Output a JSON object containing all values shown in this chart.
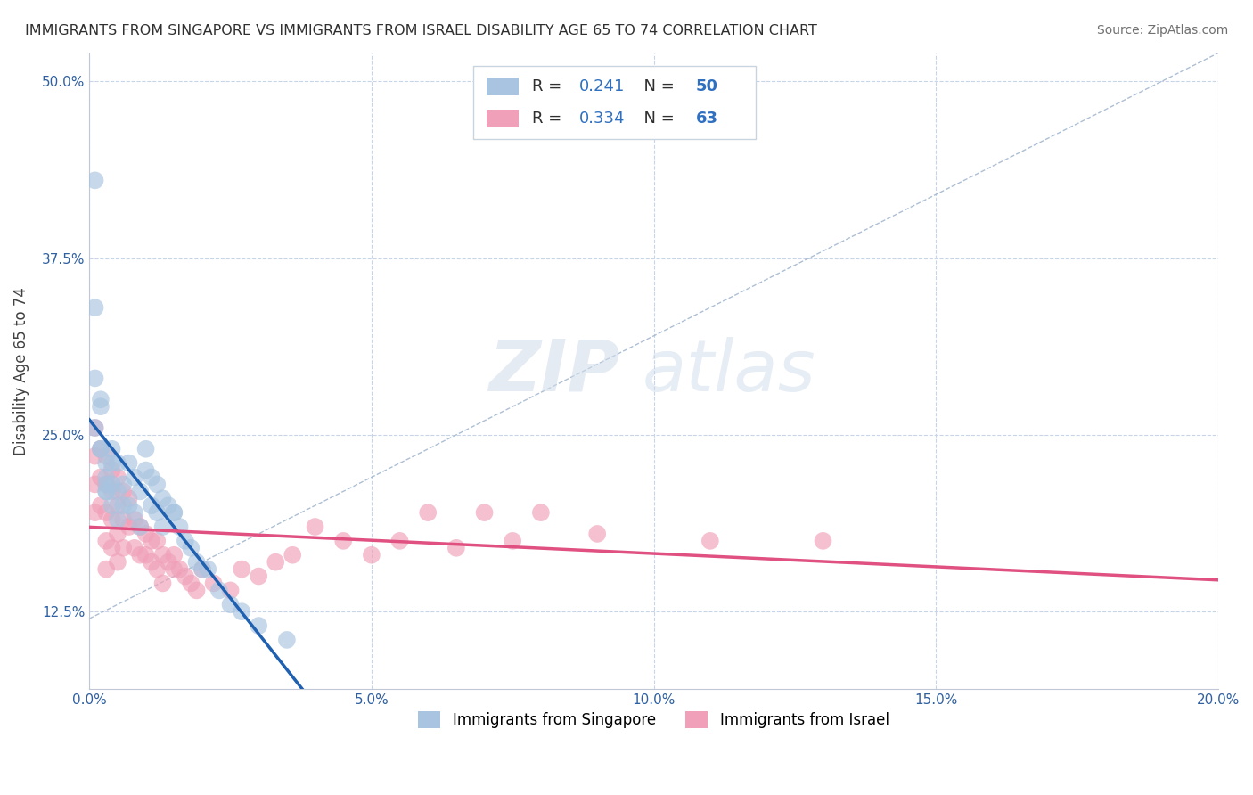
{
  "title": "IMMIGRANTS FROM SINGAPORE VS IMMIGRANTS FROM ISRAEL DISABILITY AGE 65 TO 74 CORRELATION CHART",
  "source": "Source: ZipAtlas.com",
  "ylabel": "Disability Age 65 to 74",
  "xlim": [
    0.0,
    0.2
  ],
  "ylim": [
    0.07,
    0.52
  ],
  "xticks": [
    0.0,
    0.05,
    0.1,
    0.15,
    0.2
  ],
  "xticklabels": [
    "0.0%",
    "5.0%",
    "10.0%",
    "15.0%",
    "20.0%"
  ],
  "yticks": [
    0.125,
    0.25,
    0.375,
    0.5
  ],
  "yticklabels": [
    "12.5%",
    "25.0%",
    "37.5%",
    "50.0%"
  ],
  "singapore_R": 0.241,
  "singapore_N": 50,
  "israel_R": 0.334,
  "israel_N": 63,
  "singapore_color": "#a8c4e0",
  "israel_color": "#f0a0b8",
  "singapore_line_color": "#2060b0",
  "israel_line_color": "#e05080",
  "legend_singapore": "Immigrants from Singapore",
  "legend_israel": "Immigrants from Israel",
  "background_color": "#ffffff",
  "grid_color": "#c8d4e8",
  "watermark_zip": "ZIP",
  "watermark_atlas": "atlas",
  "singapore_x": [
    0.001,
    0.001,
    0.001,
    0.001,
    0.002,
    0.002,
    0.002,
    0.002,
    0.003,
    0.003,
    0.003,
    0.003,
    0.003,
    0.004,
    0.004,
    0.004,
    0.004,
    0.005,
    0.005,
    0.005,
    0.006,
    0.006,
    0.007,
    0.007,
    0.008,
    0.008,
    0.009,
    0.009,
    0.01,
    0.01,
    0.011,
    0.011,
    0.012,
    0.012,
    0.013,
    0.013,
    0.014,
    0.015,
    0.015,
    0.016,
    0.017,
    0.018,
    0.019,
    0.02,
    0.021,
    0.023,
    0.025,
    0.027,
    0.03,
    0.035
  ],
  "singapore_y": [
    0.43,
    0.34,
    0.29,
    0.255,
    0.275,
    0.27,
    0.24,
    0.24,
    0.23,
    0.22,
    0.215,
    0.21,
    0.21,
    0.24,
    0.23,
    0.215,
    0.2,
    0.23,
    0.21,
    0.19,
    0.215,
    0.2,
    0.23,
    0.2,
    0.22,
    0.195,
    0.21,
    0.185,
    0.24,
    0.225,
    0.22,
    0.2,
    0.215,
    0.195,
    0.205,
    0.185,
    0.2,
    0.195,
    0.195,
    0.185,
    0.175,
    0.17,
    0.16,
    0.155,
    0.155,
    0.14,
    0.13,
    0.125,
    0.115,
    0.105
  ],
  "israel_x": [
    0.001,
    0.001,
    0.001,
    0.001,
    0.002,
    0.002,
    0.002,
    0.003,
    0.003,
    0.003,
    0.003,
    0.003,
    0.004,
    0.004,
    0.004,
    0.004,
    0.005,
    0.005,
    0.005,
    0.005,
    0.006,
    0.006,
    0.006,
    0.007,
    0.007,
    0.008,
    0.008,
    0.009,
    0.009,
    0.01,
    0.01,
    0.011,
    0.011,
    0.012,
    0.012,
    0.013,
    0.013,
    0.014,
    0.015,
    0.015,
    0.016,
    0.017,
    0.018,
    0.019,
    0.02,
    0.022,
    0.025,
    0.027,
    0.03,
    0.033,
    0.036,
    0.04,
    0.045,
    0.05,
    0.055,
    0.06,
    0.065,
    0.07,
    0.075,
    0.08,
    0.09,
    0.11,
    0.13
  ],
  "israel_y": [
    0.255,
    0.235,
    0.215,
    0.195,
    0.24,
    0.22,
    0.2,
    0.235,
    0.215,
    0.195,
    0.175,
    0.155,
    0.225,
    0.21,
    0.19,
    0.17,
    0.22,
    0.2,
    0.18,
    0.16,
    0.21,
    0.19,
    0.17,
    0.205,
    0.185,
    0.19,
    0.17,
    0.185,
    0.165,
    0.18,
    0.165,
    0.175,
    0.16,
    0.175,
    0.155,
    0.165,
    0.145,
    0.16,
    0.155,
    0.165,
    0.155,
    0.15,
    0.145,
    0.14,
    0.155,
    0.145,
    0.14,
    0.155,
    0.15,
    0.16,
    0.165,
    0.185,
    0.175,
    0.165,
    0.175,
    0.195,
    0.17,
    0.195,
    0.175,
    0.195,
    0.18,
    0.175,
    0.175
  ]
}
